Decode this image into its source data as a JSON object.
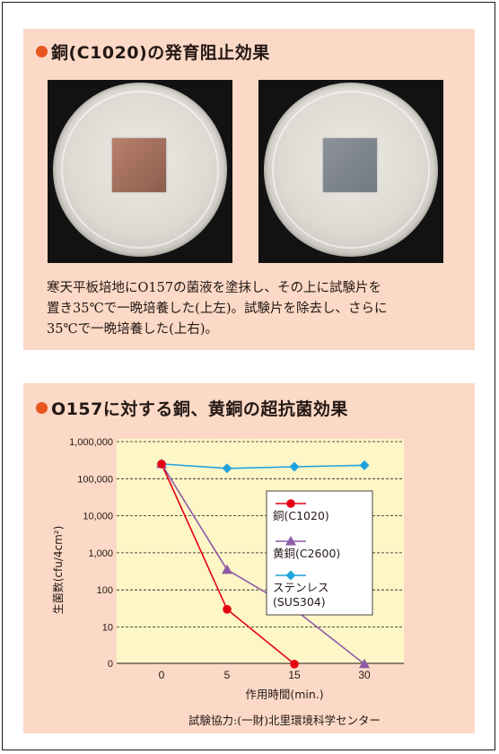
{
  "section1": {
    "title": "銅(C1020)の発育阻止効果",
    "description_lines": [
      "寒天平板培地にO157の菌液を塗抹し、その上に試験片を",
      "置き35℃で一晩培養した(上左)。試験片を除去し、さらに",
      "35℃で一晩培養した(上右)。"
    ]
  },
  "section2": {
    "title": "O157に対する銅、黄銅の超抗菌効果",
    "credit": "試験協力:(一財)北里環境科学センター"
  },
  "colors": {
    "accent": "#e8561f",
    "panel_background": "#fbd9c6",
    "plot_background": "#fdf6c7",
    "copper": "#e60012",
    "brass": "#8e5ba6",
    "stainless": "#1fa2dc"
  },
  "chart_data": {
    "type": "line",
    "x_scale": "categorical",
    "categories": [
      "0",
      "5",
      "15",
      "30"
    ],
    "xlabel": "作用時間(min.)",
    "ylabel": "生菌数(cfu/4cm²)",
    "y_scale": "log",
    "y_ticks": [
      "0",
      "10",
      "100",
      "1,000",
      "10,000",
      "100,000",
      "1,000,000"
    ],
    "grid": "horizontal dashed",
    "legend_position": "right",
    "series": [
      {
        "name": "銅(C1020)",
        "color": "#e60012",
        "marker": "circle",
        "values": [
          250000,
          30,
          1,
          null
        ]
      },
      {
        "name": "黄銅(C2600)",
        "color": "#8e5ba6",
        "marker": "triangle",
        "values": [
          250000,
          350,
          30,
          1
        ]
      },
      {
        "name": "ステンレス(SUS304)",
        "color": "#1fa2dc",
        "marker": "diamond",
        "values": [
          250000,
          190000,
          210000,
          230000
        ]
      }
    ],
    "legend_labels": [
      [
        "銅(C1020)"
      ],
      [
        "黄銅(C2600)"
      ],
      [
        "ステンレス",
        "(SUS304)"
      ]
    ]
  }
}
